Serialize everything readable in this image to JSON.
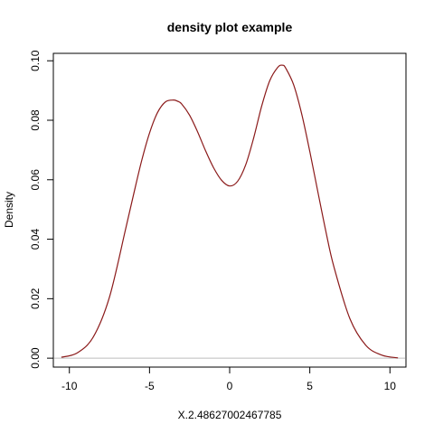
{
  "chart_data": {
    "type": "line",
    "title": "density plot example",
    "xlabel": "X.2.48627002467785",
    "ylabel": "Density",
    "xlim": [
      -11,
      11
    ],
    "ylim": [
      -0.003,
      0.1025
    ],
    "x_ticks": [
      -10,
      -5,
      0,
      5,
      10
    ],
    "y_ticks": [
      0.0,
      0.02,
      0.04,
      0.06,
      0.08,
      0.1
    ],
    "x_tick_labels": [
      "-10",
      "-5",
      "0",
      "5",
      "10"
    ],
    "y_tick_labels": [
      "0.00",
      "0.02",
      "0.04",
      "0.06",
      "0.08",
      "0.10"
    ],
    "grid": false,
    "baseline": 0,
    "series": [
      {
        "color": "#8b1a1a",
        "x": [
          -10.5,
          -9.5,
          -8.5,
          -7.5,
          -6.5,
          -6.0,
          -5.5,
          -5.0,
          -4.5,
          -4.0,
          -3.5,
          -3.25,
          -3.0,
          -2.5,
          -2.0,
          -1.5,
          -1.0,
          -0.5,
          0.0,
          0.5,
          1.0,
          1.5,
          2.0,
          2.5,
          3.0,
          3.3,
          3.5,
          4.0,
          4.5,
          5.0,
          5.5,
          6.0,
          6.5,
          7.5,
          8.5,
          9.5,
          10.5
        ],
        "y": [
          0.0003,
          0.0018,
          0.0072,
          0.0205,
          0.0432,
          0.0549,
          0.0662,
          0.0757,
          0.0826,
          0.0862,
          0.0868,
          0.0864,
          0.0855,
          0.0817,
          0.0761,
          0.0697,
          0.064,
          0.0598,
          0.0579,
          0.0595,
          0.065,
          0.0741,
          0.0848,
          0.0933,
          0.0978,
          0.0985,
          0.0975,
          0.0918,
          0.082,
          0.0695,
          0.056,
          0.0427,
          0.0308,
          0.0133,
          0.0043,
          0.001,
          0.0001
        ]
      }
    ]
  }
}
